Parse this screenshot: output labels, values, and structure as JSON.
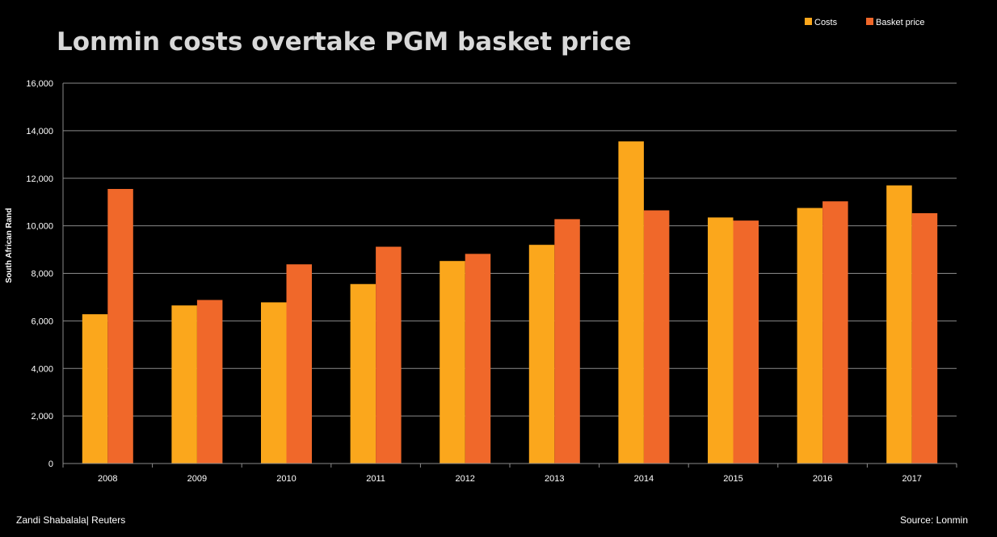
{
  "chart_data": {
    "type": "bar",
    "title": "Lonmin costs overtake PGM basket price",
    "xlabel": "",
    "ylabel": "South African Rand",
    "ylim": [
      0,
      16000
    ],
    "yticks": [
      0,
      2000,
      4000,
      6000,
      8000,
      10000,
      12000,
      14000,
      16000
    ],
    "ytick_labels": [
      "0",
      "2,000",
      "4,000",
      "6,000",
      "8,000",
      "10,000",
      "12,000",
      "14,000",
      "16,000"
    ],
    "categories": [
      "2008",
      "2009",
      "2010",
      "2011",
      "2012",
      "2013",
      "2014",
      "2015",
      "2016",
      "2017"
    ],
    "series": [
      {
        "name": "Costs",
        "color": "#fba71c",
        "values": [
          6280,
          6650,
          6780,
          7550,
          8520,
          9200,
          13550,
          10350,
          10750,
          11700
        ]
      },
      {
        "name": "Basket price",
        "color": "#f0682a",
        "values": [
          11550,
          6880,
          8380,
          9120,
          8820,
          10280,
          10650,
          10220,
          11030,
          10530
        ]
      }
    ],
    "grid": true,
    "legend_position": "top-right"
  },
  "footer": {
    "credit": "Zandi Shabalala| Reuters",
    "source": "Source: Lonmin"
  }
}
